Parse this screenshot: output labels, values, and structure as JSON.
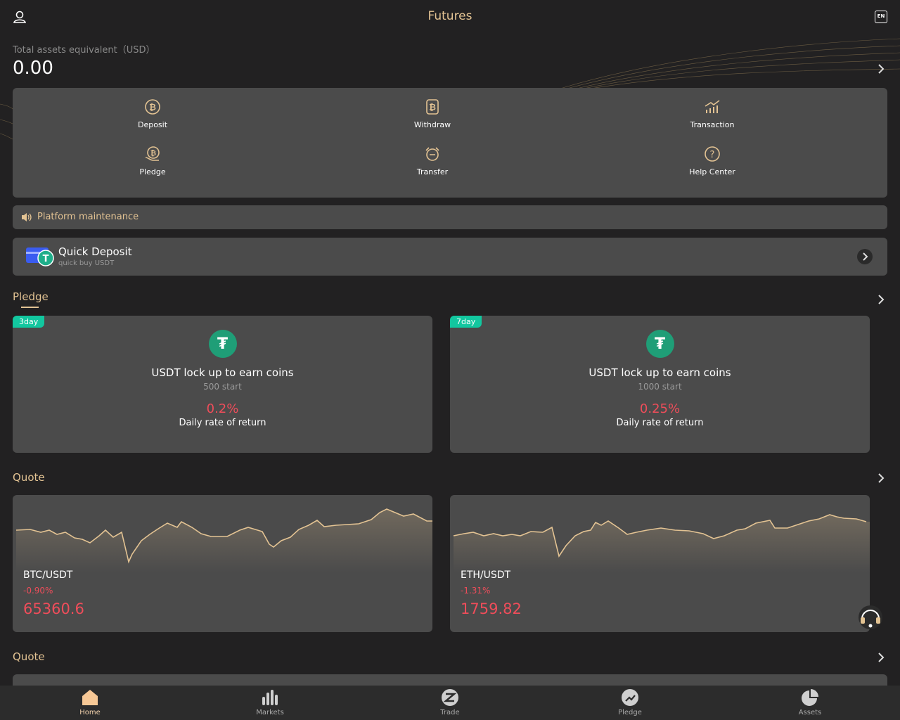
{
  "header": {
    "title": "Futures",
    "language": "EN"
  },
  "assets": {
    "label": "Total assets equivalent（USD）",
    "value": "0.00"
  },
  "actions": [
    "Deposit",
    "Withdraw",
    "Transaction",
    "Pledge",
    "Transfer",
    "Help Center"
  ],
  "notice": "Platform maintenance",
  "quick_deposit": {
    "title": "Quick Deposit",
    "subtitle": "quick buy USDT"
  },
  "pledge": {
    "heading": "Pledge",
    "cards": [
      {
        "tag": "3day",
        "title": "USDT lock up to earn coins",
        "minimum": "500 start",
        "rate": "0.2%",
        "rate_label": "Daily rate of return"
      },
      {
        "tag": "7day",
        "title": "USDT lock up to earn coins",
        "minimum": "1000 start",
        "rate": "0.25%",
        "rate_label": "Daily rate of return"
      }
    ]
  },
  "quote": {
    "heading": "Quote",
    "cards": [
      {
        "pair": "BTC/USDT",
        "change": "-0.90%",
        "price": "65360.6"
      },
      {
        "pair": "ETH/USDT",
        "change": "-1.31%",
        "price": "1759.82"
      }
    ]
  },
  "quote_more": {
    "heading": "Quote"
  },
  "nav": [
    "Home",
    "Markets",
    "Trade",
    "Pledge",
    "Assets"
  ]
}
